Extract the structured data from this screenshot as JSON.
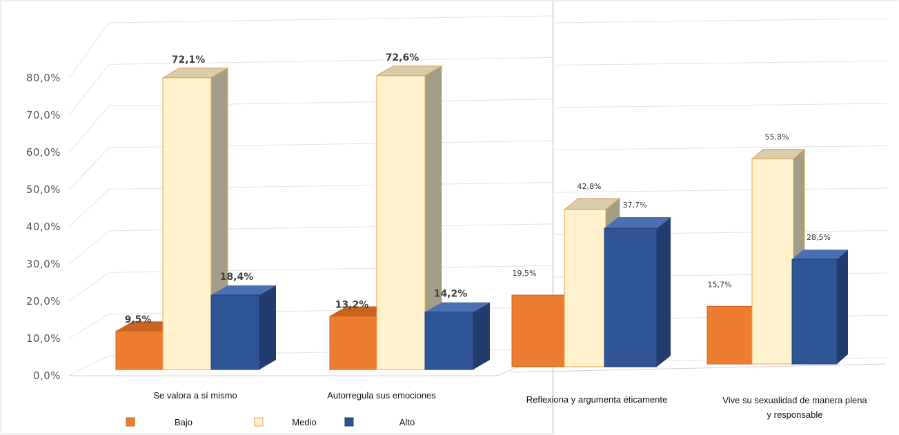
{
  "chart_data": {
    "type": "bar",
    "y_ticks": [
      "0,0%",
      "10,0%",
      "20,0%",
      "30,0%",
      "40,0%",
      "50,0%",
      "60,0%",
      "70,0%",
      "80,0%"
    ],
    "ylim": [
      0,
      80
    ],
    "grid": true,
    "legend_position": "bottom-left",
    "categories": [
      "Se valora a sí mismo",
      "Autorregula sus emociones",
      "Reflexiona y argumenta éticamente",
      "Vive su sexualidad de manera plena y responsable"
    ],
    "series": [
      {
        "name": "Bajo",
        "color": "#ED7D31",
        "values": [
          9.5,
          13.2,
          19.5,
          15.7
        ],
        "labels": [
          "9,5%",
          "13,2%",
          "19,5%",
          "15,7%"
        ]
      },
      {
        "name": "Medio",
        "color": "#FFF2CC",
        "values": [
          72.1,
          72.6,
          42.8,
          55.8
        ],
        "labels": [
          "72,1%",
          "72,6%",
          "42,8%",
          "55,8%"
        ]
      },
      {
        "name": "Alto",
        "color": "#2F5597",
        "values": [
          18.4,
          14.2,
          37.7,
          28.5
        ],
        "labels": [
          "18,4%",
          "14,2%",
          "37,7%",
          "28,5%"
        ]
      }
    ],
    "legend": [
      "Bajo",
      "Medio",
      "Alto"
    ]
  }
}
